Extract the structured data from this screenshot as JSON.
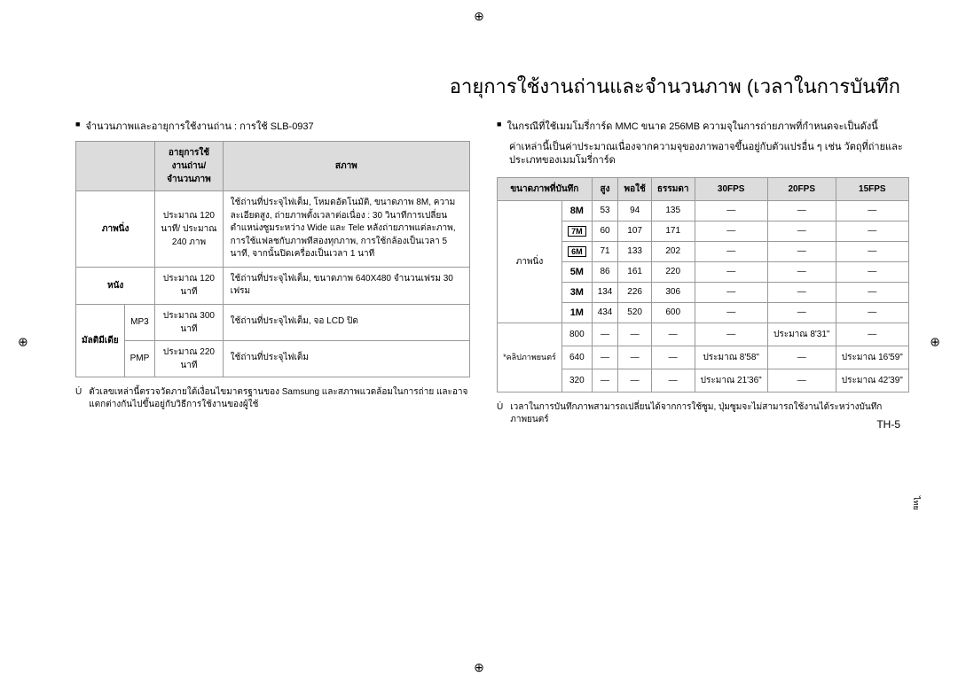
{
  "title": "อายุการใช้งานถ่านและจำนวนภาพ (เวลาในการบันทึก",
  "left": {
    "bullet": "จำนวนภาพและอายุการใช้งานถ่าน : การใช้ SLB-0937",
    "table": {
      "headers": [
        "",
        "อายุการใช้งานถ่าน/จำนวนภาพ",
        "สภาพ"
      ],
      "rows": [
        {
          "label": "ภาพนิ่ง",
          "life": "ประมาณ 120 นาที/\nประมาณ 240 ภาพ",
          "cond": "ใช้ถ่านที่ประจุไฟเต็ม, โหมดอัตโนมัติ, ขนาดภาพ 8M, ความละเอียดสูง, ถ่ายภาพตั้งเวลาต่อเนื่อง : 30 วินาทีการเปลี่ยนตำแหน่งซูมระหว่าง Wide และ Tele หลังถ่ายภาพแต่ละภาพ, การใช้แฟลชกับภาพทีสองทุกภาพ, การใช้กล้องเป็นเวลา 5 นาที, จากนั้นปิดเครื่องเป็นเวลา 1 นาที"
        },
        {
          "label": "หนัง",
          "life": "ประมาณ 120 นาที",
          "cond": "ใช้ถ่านที่ประจุไฟเต็ม, ขนาดภาพ 640X480 จำนวนเฟรม 30 เฟรม"
        },
        {
          "label": "มัลติมีเดีย",
          "sublabel1": "MP3",
          "life1": "ประมาณ 300 นาที",
          "cond1": "ใช้ถ่านที่ประจุไฟเต็ม, จอ LCD ปิด",
          "sublabel2": "PMP",
          "life2": "ประมาณ 220 นาที",
          "cond2": "ใช้ถ่านที่ประจุไฟเต็ม"
        }
      ]
    },
    "footnote": "ตัวเลขเหล่านี้ตรวจวัดภายใต้เงื่อนไขมาตรฐานของ Samsung และสภาพแวดล้อมในการถ่าย และอาจแตกต่างกันไปขึ้นอยู่กับวิธีการใช้งานของผู้ใช้"
  },
  "right": {
    "bullet": "ในกรณีที่ใช้เมมโมรี่การ์ด MMC ขนาด 256MB ความจุในการถ่ายภาพที่กำหนดจะเป็นดังนี้",
    "note": "ค่าเหล่านี้เป็นค่าประมาณเนื่องจากความจุของภาพอาจขึ้นอยู่กับตัวแปรอื่น ๆ เช่น วัตถุที่ถ่ายและประเภทของเมมโมรี่การ์ด",
    "table": {
      "headers": [
        "ขนาดภาพที่บันทึก",
        "สูง",
        "พอใช้",
        "ธรรมดา",
        "30FPS",
        "20FPS",
        "15FPS"
      ],
      "group1_label": "ภาพนิ่ง",
      "group1": [
        {
          "size": "8M",
          "sizeClass": "size-bold",
          "h": "53",
          "m": "94",
          "l": "135",
          "a": "—",
          "b": "—",
          "c": "—"
        },
        {
          "size": "7M",
          "sizeClass": "size-icon",
          "h": "60",
          "m": "107",
          "l": "171",
          "a": "—",
          "b": "—",
          "c": "—"
        },
        {
          "size": "6M",
          "sizeClass": "size-icon",
          "h": "71",
          "m": "133",
          "l": "202",
          "a": "—",
          "b": "—",
          "c": "—"
        },
        {
          "size": "5M",
          "sizeClass": "size-bold",
          "h": "86",
          "m": "161",
          "l": "220",
          "a": "—",
          "b": "—",
          "c": "—"
        },
        {
          "size": "3M",
          "sizeClass": "size-bold",
          "h": "134",
          "m": "226",
          "l": "306",
          "a": "—",
          "b": "—",
          "c": "—"
        },
        {
          "size": "1M",
          "sizeClass": "size-bold",
          "h": "434",
          "m": "520",
          "l": "600",
          "a": "—",
          "b": "—",
          "c": "—"
        }
      ],
      "group2_label": "*คลิปภาพยนตร์",
      "group2": [
        {
          "size": "800",
          "h": "—",
          "m": "—",
          "l": "—",
          "a": "—",
          "b": "ประมาณ 8'31\"",
          "c": "—"
        },
        {
          "size": "640",
          "h": "—",
          "m": "—",
          "l": "—",
          "a": "ประมาณ 8'58\"",
          "b": "—",
          "c": "ประมาณ 16'59\""
        },
        {
          "size": "320",
          "h": "—",
          "m": "—",
          "l": "—",
          "a": "ประมาณ 21'36\"",
          "b": "—",
          "c": "ประมาณ 42'39\""
        }
      ]
    },
    "footnote": "เวลาในการบันทึกภาพสามารถเปลี่ยนได้จากการใช้ซูม, ปุ่มซูมจะไม่สามารถใช้งานได้ระหว่างบันทึกภาพยนตร์"
  },
  "pageNumber": "TH-5",
  "sideTab": "ไทย",
  "star": "Ú"
}
